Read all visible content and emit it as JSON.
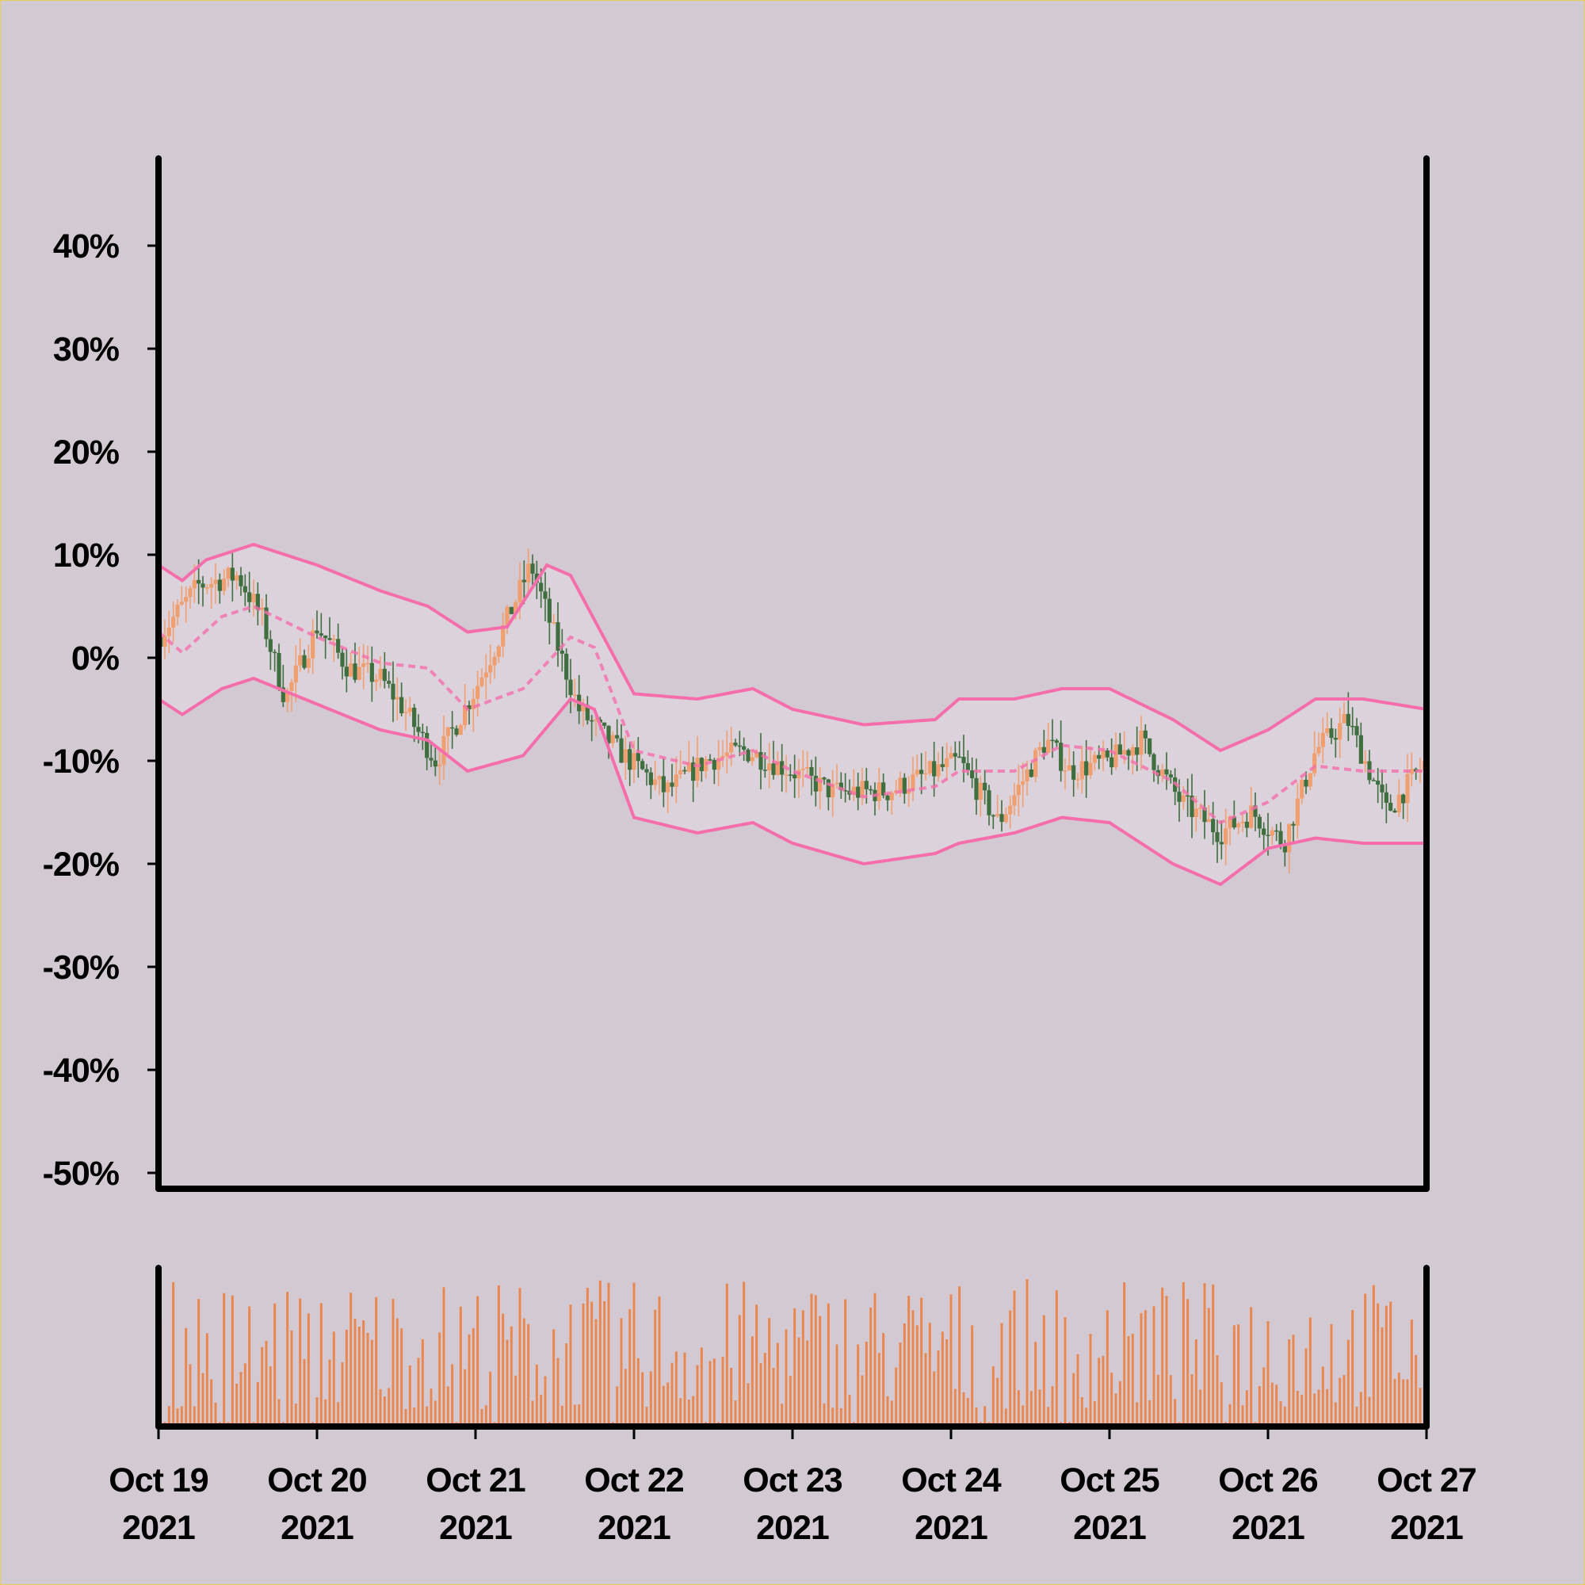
{
  "chart_data": {
    "type": "candlestick",
    "subtype": "percent-change candlestick with Bollinger bands and volume subplot",
    "x_axis": {
      "start": "2021-10-19",
      "end": "2021-10-27",
      "ticks": [
        {
          "line1": "Oct 19",
          "line2": "2021"
        },
        {
          "line1": "Oct 20",
          "line2": "2021"
        },
        {
          "line1": "Oct 21",
          "line2": "2021"
        },
        {
          "line1": "Oct 22",
          "line2": "2021"
        },
        {
          "line1": "Oct 23",
          "line2": "2021"
        },
        {
          "line1": "Oct 24",
          "line2": "2021"
        },
        {
          "line1": "Oct 25",
          "line2": "2021"
        },
        {
          "line1": "Oct 26",
          "line2": "2021"
        },
        {
          "line1": "Oct 27",
          "line2": "2021"
        }
      ]
    },
    "y_axis": {
      "unit": "%",
      "ylim": [
        -50,
        48
      ],
      "ticks": [
        40,
        30,
        20,
        10,
        0,
        -10,
        -20,
        -30,
        -40,
        -50
      ],
      "tick_labels": [
        "40%",
        "30%",
        "20%",
        "10%",
        "0%",
        "-10%",
        "-20%",
        "-30%",
        "-40%",
        "-50%"
      ]
    },
    "price_close_pct": [
      [
        0.0,
        2
      ],
      [
        0.25,
        7
      ],
      [
        0.5,
        8
      ],
      [
        0.65,
        4
      ],
      [
        0.8,
        -4
      ],
      [
        1.0,
        3
      ],
      [
        1.2,
        -1
      ],
      [
        1.4,
        -2
      ],
      [
        1.55,
        -5
      ],
      [
        1.75,
        -10
      ],
      [
        2.0,
        -3
      ],
      [
        2.15,
        2
      ],
      [
        2.35,
        9
      ],
      [
        2.5,
        2
      ],
      [
        2.65,
        -5
      ],
      [
        2.9,
        -9
      ],
      [
        3.2,
        -13
      ],
      [
        3.45,
        -10
      ],
      [
        3.7,
        -9
      ],
      [
        3.85,
        -10
      ],
      [
        4.0,
        -11
      ],
      [
        4.25,
        -13
      ],
      [
        4.6,
        -13
      ],
      [
        4.9,
        -11
      ],
      [
        5.05,
        -10
      ],
      [
        5.3,
        -16
      ],
      [
        5.6,
        -8
      ],
      [
        5.75,
        -11
      ],
      [
        6.0,
        -10
      ],
      [
        6.2,
        -8
      ],
      [
        6.45,
        -14
      ],
      [
        6.7,
        -17
      ],
      [
        6.9,
        -15
      ],
      [
        7.1,
        -18
      ],
      [
        7.3,
        -9
      ],
      [
        7.5,
        -6
      ],
      [
        7.75,
        -15
      ],
      [
        8.0,
        -10
      ]
    ],
    "bollinger": {
      "upper": [
        [
          0.0,
          9
        ],
        [
          0.15,
          7.5
        ],
        [
          0.3,
          9.5
        ],
        [
          0.6,
          11
        ],
        [
          1.0,
          9
        ],
        [
          1.4,
          6.5
        ],
        [
          1.7,
          5
        ],
        [
          1.95,
          2.5
        ],
        [
          2.2,
          3
        ],
        [
          2.45,
          9
        ],
        [
          2.6,
          8
        ],
        [
          3.0,
          -3.5
        ],
        [
          3.4,
          -4
        ],
        [
          3.75,
          -3
        ],
        [
          4.0,
          -5
        ],
        [
          4.45,
          -6.5
        ],
        [
          4.9,
          -6
        ],
        [
          5.05,
          -4
        ],
        [
          5.4,
          -4
        ],
        [
          5.7,
          -3
        ],
        [
          6.0,
          -3
        ],
        [
          6.4,
          -6
        ],
        [
          6.7,
          -9
        ],
        [
          7.0,
          -7
        ],
        [
          7.3,
          -4
        ],
        [
          7.6,
          -4
        ],
        [
          8.0,
          -5
        ]
      ],
      "middle": [
        [
          0.0,
          2.5
        ],
        [
          0.15,
          0.5
        ],
        [
          0.4,
          4
        ],
        [
          0.6,
          5
        ],
        [
          1.0,
          2
        ],
        [
          1.4,
          -0.5
        ],
        [
          1.7,
          -1
        ],
        [
          1.95,
          -5
        ],
        [
          2.3,
          -3
        ],
        [
          2.6,
          2
        ],
        [
          2.75,
          1
        ],
        [
          3.0,
          -9
        ],
        [
          3.4,
          -10.5
        ],
        [
          3.75,
          -9
        ],
        [
          4.0,
          -11
        ],
        [
          4.45,
          -13.5
        ],
        [
          4.9,
          -12.5
        ],
        [
          5.05,
          -11
        ],
        [
          5.4,
          -11
        ],
        [
          5.7,
          -8.5
        ],
        [
          6.0,
          -9
        ],
        [
          6.4,
          -12
        ],
        [
          6.7,
          -16
        ],
        [
          7.0,
          -14
        ],
        [
          7.3,
          -10.5
        ],
        [
          7.6,
          -11
        ],
        [
          8.0,
          -11
        ]
      ],
      "lower": [
        [
          0.0,
          -4
        ],
        [
          0.15,
          -5.5
        ],
        [
          0.4,
          -3
        ],
        [
          0.6,
          -2
        ],
        [
          1.0,
          -4.5
        ],
        [
          1.4,
          -7
        ],
        [
          1.7,
          -8
        ],
        [
          1.95,
          -11
        ],
        [
          2.3,
          -9.5
        ],
        [
          2.6,
          -4
        ],
        [
          2.75,
          -5
        ],
        [
          3.0,
          -15.5
        ],
        [
          3.4,
          -17
        ],
        [
          3.75,
          -16
        ],
        [
          4.0,
          -18
        ],
        [
          4.45,
          -20
        ],
        [
          4.9,
          -19
        ],
        [
          5.05,
          -18
        ],
        [
          5.4,
          -17
        ],
        [
          5.7,
          -15.5
        ],
        [
          6.0,
          -16
        ],
        [
          6.4,
          -20
        ],
        [
          6.7,
          -22
        ],
        [
          7.0,
          -18.5
        ],
        [
          7.3,
          -17.5
        ],
        [
          7.6,
          -18
        ],
        [
          8.0,
          -18
        ]
      ]
    },
    "volume": {
      "relative_max": 1.0,
      "note": "volume bars shown without axis labels"
    },
    "colors": {
      "background": "#d3c9d3",
      "up_candle": "#f0a070",
      "down_candle": "#3f6e3f",
      "bollinger_line": "#f56eab",
      "band_fill": "#ddd3dd",
      "volume_bar": "#e9874f",
      "axis": "#000000"
    },
    "grid": false,
    "legend": "none"
  }
}
